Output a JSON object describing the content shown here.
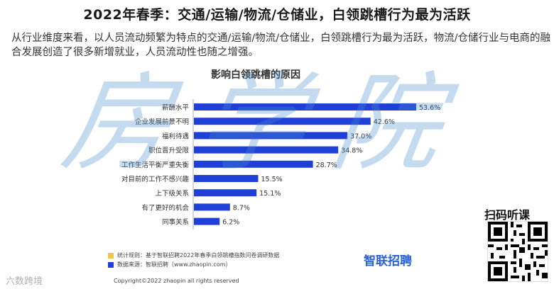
{
  "headline": "2022年春季：交通/运输/物流/仓储业，白领跳槽行为最为活跃",
  "intro": "从行业维度来看，以人员流动频繁为特点的交通/运输/物流/仓储业，白领跳槽行为最为活跃，物流/仓储行业与电商的融合发展创造了很多新增就业，人员流动性也随之增强。",
  "watermark": "房学院",
  "chart_data": {
    "type": "bar",
    "orientation": "horizontal",
    "title": "影响白领跳槽的原因",
    "categories": [
      "薪酬水平",
      "企业发展前景不明",
      "福利待遇",
      "职位晋升受限",
      "工作生活平衡严重失衡",
      "对目前的工作不感兴趣",
      "上下级关系",
      "有了更好的机会",
      "同事关系"
    ],
    "values": [
      53.6,
      42.6,
      37.0,
      34.8,
      28.7,
      15.5,
      15.1,
      8.7,
      6.2
    ],
    "value_labels": [
      "53.6%",
      "42.6%",
      "37.0%",
      "34.8%",
      "28.7%",
      "15.5%",
      "15.1%",
      "8.7%",
      "6.2%"
    ],
    "unit": "%",
    "bar_color": "#1f3fd9",
    "grid": false,
    "legend": "none"
  },
  "footnotes": {
    "rule": "统计规则：基于智联招聘2022年春季白领跳槽指数问卷调研数据",
    "source": "数据来源：智联招聘（www.zhaopin.com）",
    "rule_color": "#f0c64a",
    "source_color": "#1f3fd9"
  },
  "brand": "智联招聘",
  "copyright": "Copyright©2022 zhaopin all rights reserved",
  "scan_label": "扫码听课",
  "corner_logo": "六数跨境"
}
